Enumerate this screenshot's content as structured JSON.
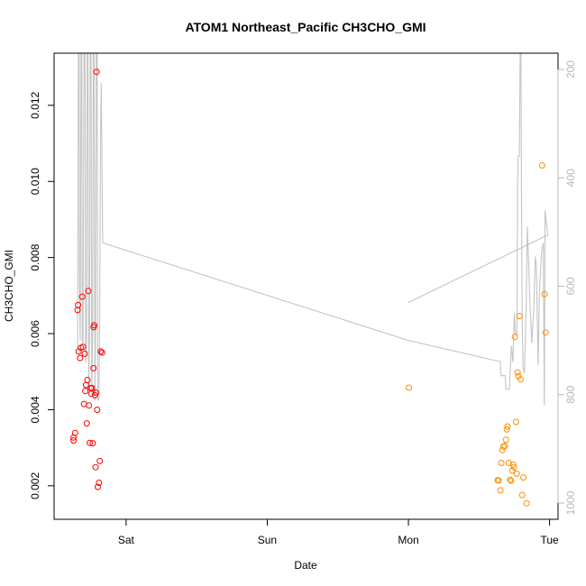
{
  "chart_data": {
    "type": "scatter",
    "title": "ATOM1 Northeast_Pacific CH3CHO_GMI",
    "xlabel": "Date",
    "ylabel": "CH3CHO_GMI",
    "x_unit": "days since Sat 00:00",
    "xlim": [
      -0.51,
      3.06
    ],
    "ylim": [
      0.00112,
      0.01337
    ],
    "x_ticks": [
      {
        "value": 0,
        "label": "Sat"
      },
      {
        "value": 1,
        "label": "Sun"
      },
      {
        "value": 2,
        "label": "Mon"
      },
      {
        "value": 3,
        "label": "Tue"
      }
    ],
    "y_ticks": [
      {
        "value": 0.002,
        "label": "0.002"
      },
      {
        "value": 0.004,
        "label": "0.004"
      },
      {
        "value": 0.006,
        "label": "0.006"
      },
      {
        "value": 0.008,
        "label": "0.008"
      },
      {
        "value": 0.01,
        "label": "0.010"
      },
      {
        "value": 0.012,
        "label": "0.012"
      }
    ],
    "y2_label": "",
    "y2_lim": [
      1030,
      170
    ],
    "y2_reversed": true,
    "y2_ticks": [
      {
        "value": 200,
        "label": "200"
      },
      {
        "value": 400,
        "label": "400"
      },
      {
        "value": 600,
        "label": "600"
      },
      {
        "value": 800,
        "label": "800"
      },
      {
        "value": 1000,
        "label": "1000"
      }
    ],
    "grid": false,
    "series": [
      {
        "color": "#ff0000",
        "marker": "circle-open",
        "points": [
          [
            -0.373,
            0.00327
          ],
          [
            -0.372,
            0.00319
          ],
          [
            -0.361,
            0.00339
          ],
          [
            -0.344,
            0.00662
          ],
          [
            -0.34,
            0.00675
          ],
          [
            -0.336,
            0.00553
          ],
          [
            -0.326,
            0.00536
          ],
          [
            -0.32,
            0.00563
          ],
          [
            -0.311,
            0.00697
          ],
          [
            -0.305,
            0.00565
          ],
          [
            -0.298,
            0.00415
          ],
          [
            -0.293,
            0.00547
          ],
          [
            -0.289,
            0.00449
          ],
          [
            -0.284,
            0.00465
          ],
          [
            -0.278,
            0.00364
          ],
          [
            -0.274,
            0.00478
          ],
          [
            -0.267,
            0.00712
          ],
          [
            -0.263,
            0.00411
          ],
          [
            -0.258,
            0.00313
          ],
          [
            -0.25,
            0.00457
          ],
          [
            -0.247,
            0.00442
          ],
          [
            -0.242,
            0.00457
          ],
          [
            -0.236,
            0.00312
          ],
          [
            -0.231,
            0.00509
          ],
          [
            -0.23,
            0.00617
          ],
          [
            -0.226,
            0.00622
          ],
          [
            -0.221,
            0.00438
          ],
          [
            -0.216,
            0.00249
          ],
          [
            -0.213,
            0.00445
          ],
          [
            -0.209,
            0.01288
          ],
          [
            -0.205,
            0.004
          ],
          [
            -0.2,
            0.00197
          ],
          [
            -0.192,
            0.00208
          ],
          [
            -0.186,
            0.00265
          ],
          [
            -0.18,
            0.00553
          ],
          [
            -0.17,
            0.0055
          ]
        ]
      },
      {
        "color": "#ff8c00",
        "marker": "circle-open",
        "points": [
          [
            2.004,
            0.00458
          ],
          [
            2.631,
            0.00215
          ],
          [
            2.64,
            0.00214
          ],
          [
            2.652,
            0.00188
          ],
          [
            2.658,
            0.0026
          ],
          [
            2.665,
            0.00294
          ],
          [
            2.673,
            0.00303
          ],
          [
            2.683,
            0.00305
          ],
          [
            2.691,
            0.00321
          ],
          [
            2.697,
            0.00348
          ],
          [
            2.702,
            0.00356
          ],
          [
            2.711,
            0.0026
          ],
          [
            2.721,
            0.00216
          ],
          [
            2.727,
            0.00213
          ],
          [
            2.735,
            0.0024
          ],
          [
            2.742,
            0.00256
          ],
          [
            2.748,
            0.00249
          ],
          [
            2.755,
            0.00591
          ],
          [
            2.762,
            0.00368
          ],
          [
            2.768,
            0.00232
          ],
          [
            2.773,
            0.00498
          ],
          [
            2.779,
            0.00488
          ],
          [
            2.787,
            0.00646
          ],
          [
            2.795,
            0.0048
          ],
          [
            2.806,
            0.00176
          ],
          [
            2.815,
            0.00222
          ],
          [
            2.837,
            0.00154
          ],
          [
            2.947,
            0.01042
          ],
          [
            2.964,
            0.00704
          ],
          [
            2.972,
            0.00603
          ]
        ]
      }
    ],
    "line": {
      "color": "#c4c4c4",
      "y_axis": "right",
      "points": [
        [
          -0.343,
          715
        ],
        [
          -0.338,
          160
        ],
        [
          -0.333,
          160
        ],
        [
          -0.33,
          605
        ],
        [
          -0.325,
          700
        ],
        [
          -0.319,
          160
        ],
        [
          -0.314,
          160
        ],
        [
          -0.31,
          700
        ],
        [
          -0.305,
          705
        ],
        [
          -0.298,
          160
        ],
        [
          -0.291,
          160
        ],
        [
          -0.287,
          740
        ],
        [
          -0.281,
          705
        ],
        [
          -0.275,
          160
        ],
        [
          -0.27,
          160
        ],
        [
          -0.265,
          785
        ],
        [
          -0.259,
          700
        ],
        [
          -0.254,
          160
        ],
        [
          -0.248,
          160
        ],
        [
          -0.243,
          800
        ],
        [
          -0.237,
          705
        ],
        [
          -0.232,
          160
        ],
        [
          -0.227,
          160
        ],
        [
          -0.221,
          810
        ],
        [
          -0.216,
          690
        ],
        [
          -0.211,
          160
        ],
        [
          -0.205,
          160
        ],
        [
          -0.2,
          810
        ],
        [
          -0.192,
          810
        ],
        [
          -0.187,
          650
        ],
        [
          -0.181,
          325
        ],
        [
          -0.176,
          225
        ],
        [
          -0.166,
          520
        ],
        [
          2.0,
          700
        ],
        [
          2.632,
          738
        ],
        [
          2.65,
          738
        ],
        [
          2.657,
          765
        ],
        [
          2.686,
          765
        ],
        [
          2.691,
          790
        ],
        [
          2.715,
          790
        ],
        [
          2.73,
          710
        ],
        [
          2.74,
          740
        ],
        [
          2.751,
          650
        ],
        [
          2.758,
          690
        ],
        [
          2.769,
          690
        ],
        [
          2.774,
          400
        ],
        [
          2.778,
          360
        ],
        [
          2.786,
          360
        ],
        [
          2.792,
          160
        ],
        [
          2.797,
          160
        ],
        [
          2.803,
          560
        ],
        [
          2.807,
          680
        ],
        [
          2.812,
          750
        ],
        [
          2.822,
          760
        ],
        [
          2.834,
          640
        ],
        [
          2.843,
          490
        ],
        [
          2.852,
          555
        ],
        [
          2.86,
          630
        ],
        [
          2.874,
          705
        ],
        [
          2.888,
          640
        ],
        [
          2.899,
          545
        ],
        [
          2.906,
          560
        ],
        [
          2.919,
          745
        ],
        [
          2.928,
          610
        ],
        [
          2.944,
          535
        ],
        [
          2.955,
          520
        ],
        [
          2.963,
          820
        ],
        [
          2.968,
          460
        ],
        [
          2.974,
          475
        ],
        [
          2.987,
          505
        ],
        [
          2.991,
          505
        ],
        [
          2.0,
          630
        ]
      ]
    }
  }
}
